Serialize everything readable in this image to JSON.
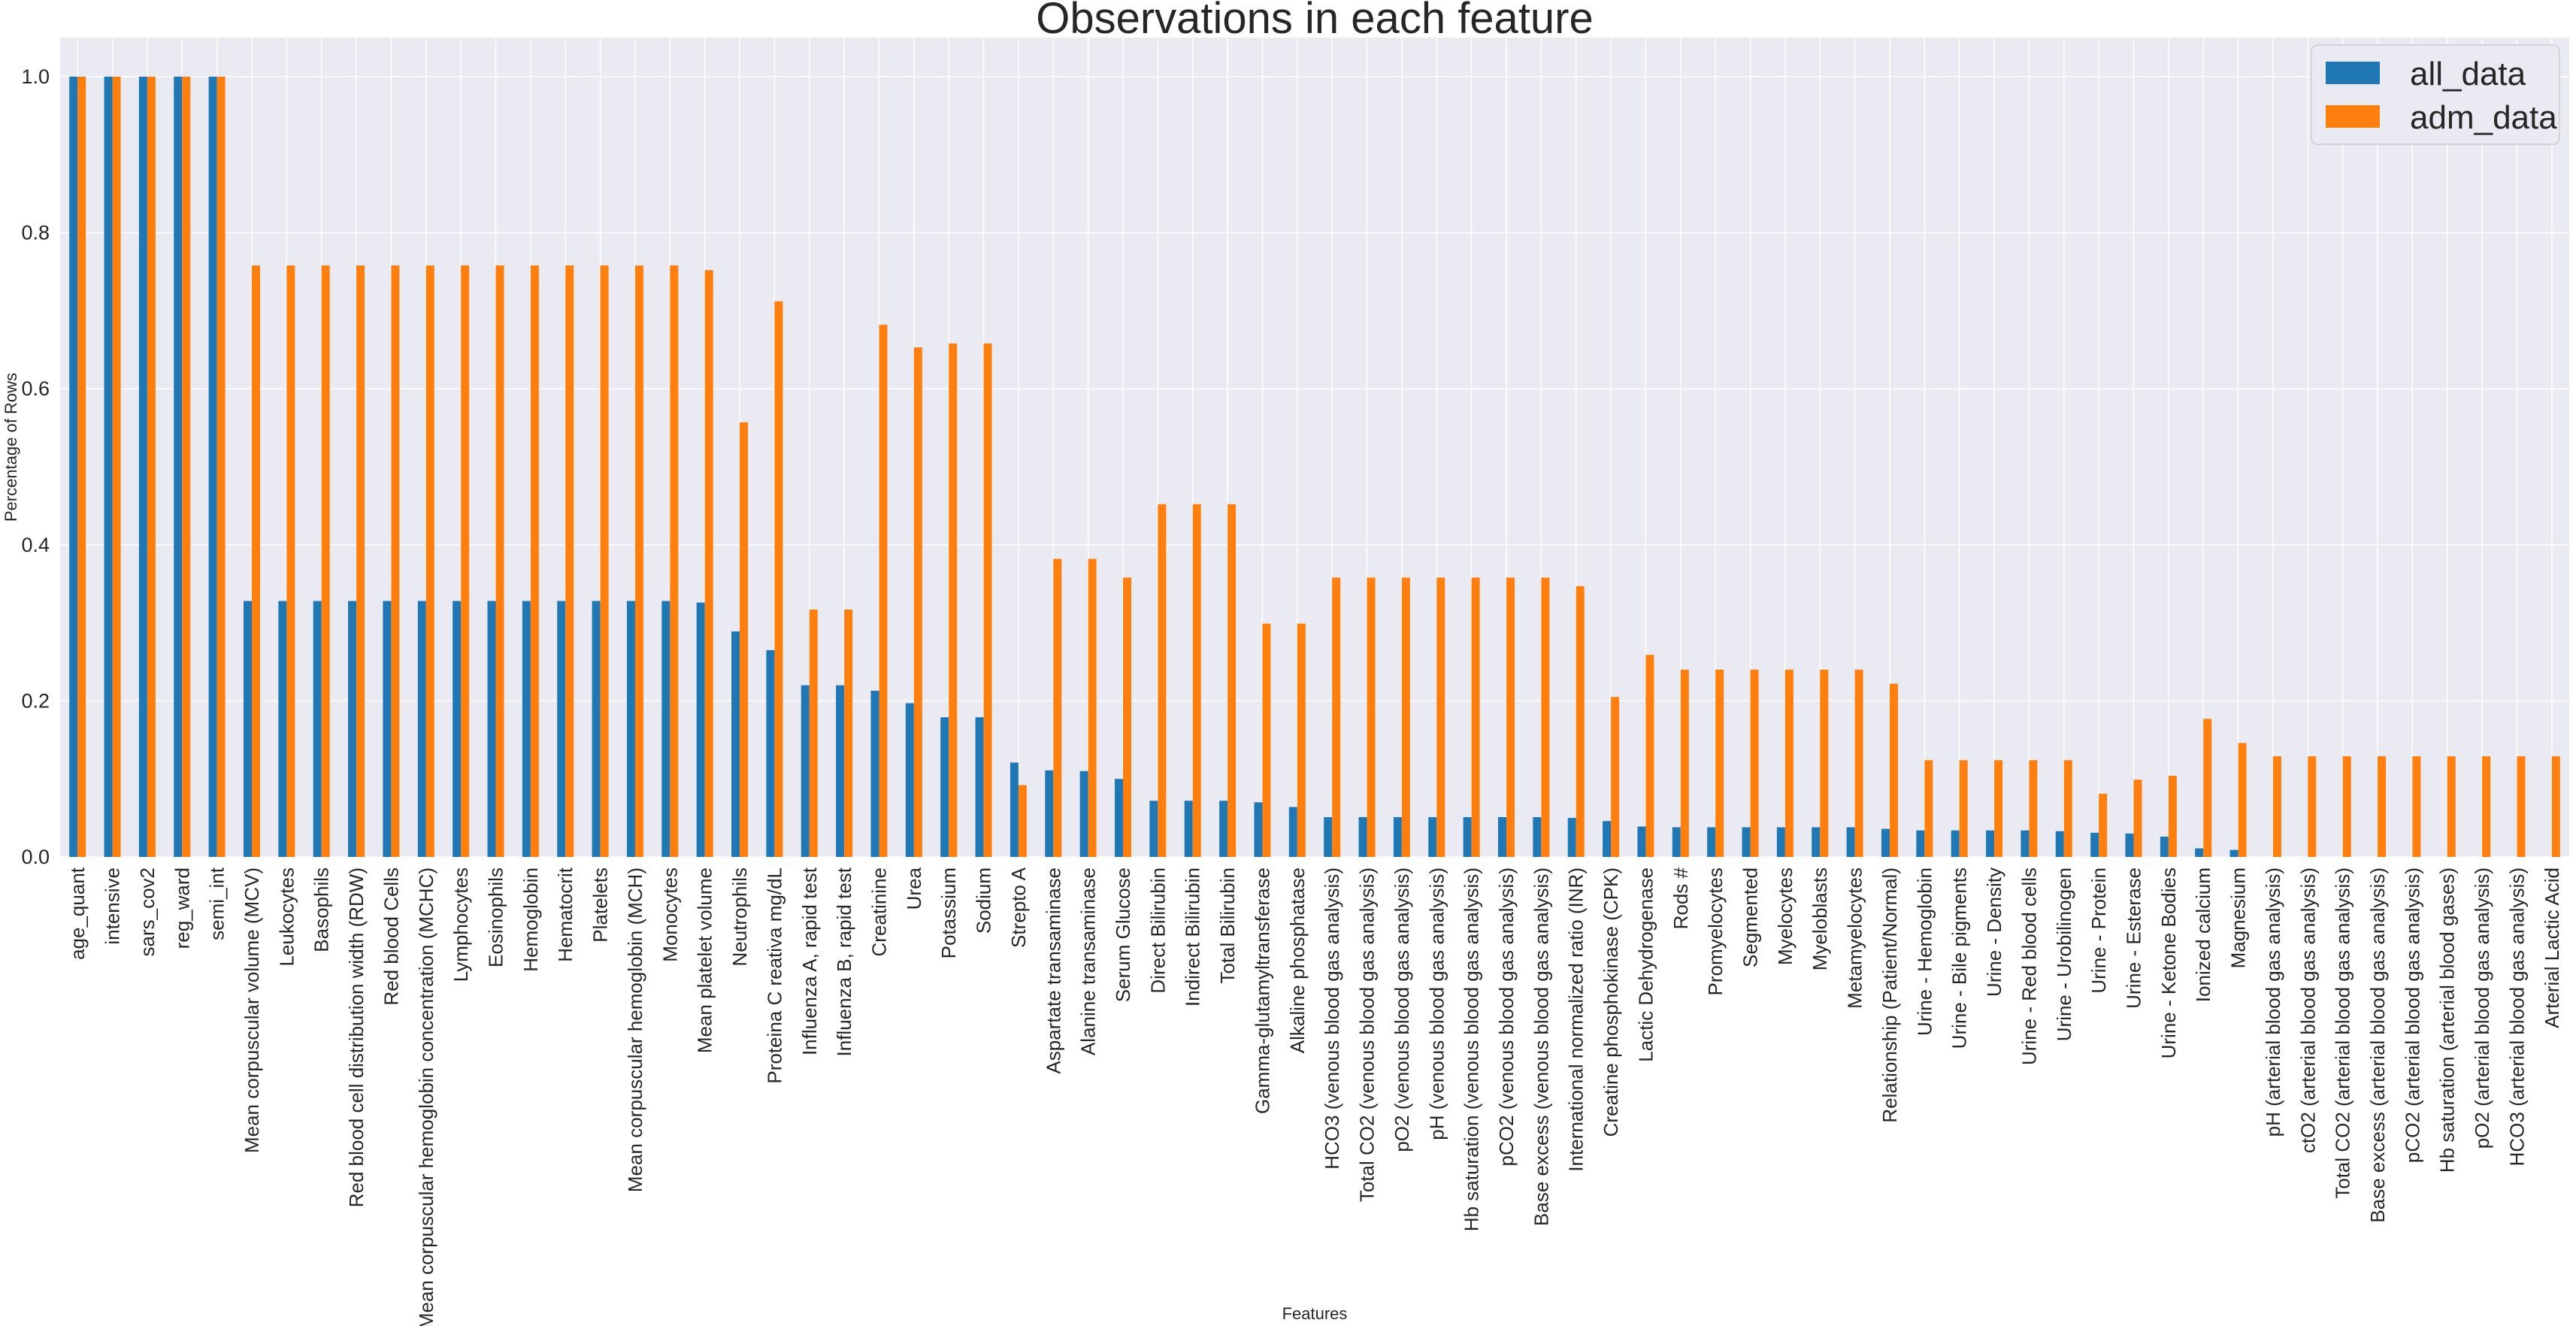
{
  "chart_data": {
    "type": "bar",
    "title": "Observations in each feature",
    "xlabel": "Features",
    "ylabel": "Percentage of Rows",
    "ylim": [
      0,
      1.05
    ],
    "yticks": [
      "0.0",
      "0.2",
      "0.4",
      "0.6",
      "0.8",
      "1.0"
    ],
    "grid": true,
    "legend_position": "top-right",
    "categories": [
      "age_quant",
      "intensive",
      "sars_cov2",
      "reg_ward",
      "semi_int",
      "Mean corpuscular volume (MCV)",
      "Leukocytes",
      "Basophils",
      "Red blood cell distribution width (RDW)",
      "Red blood Cells",
      "Mean corpuscular hemoglobin concentration (MCHC)",
      "Lymphocytes",
      "Eosinophils",
      "Hemoglobin",
      "Hematocrit",
      "Platelets",
      "Mean corpuscular hemoglobin (MCH)",
      "Monocytes",
      "Mean platelet volume",
      "Neutrophils",
      "Proteina C reativa mg/dL",
      "Influenza A, rapid test",
      "Influenza B, rapid test",
      "Creatinine",
      "Urea",
      "Potassium",
      "Sodium",
      "Strepto A",
      "Aspartate transaminase",
      "Alanine transaminase",
      "Serum Glucose",
      "Direct Bilirubin",
      "Indirect Bilirubin",
      "Total Bilirubin",
      "Gamma-glutamyltransferase",
      "Alkaline phosphatase",
      "HCO3 (venous blood gas analysis)",
      "Total CO2 (venous blood gas analysis)",
      "pO2 (venous blood gas analysis)",
      "pH (venous blood gas analysis)",
      "Hb saturation (venous blood gas analysis)",
      "pCO2 (venous blood gas analysis)",
      "Base excess (venous blood gas analysis)",
      "International normalized ratio (INR)",
      "Creatine phosphokinase (CPK)",
      "Lactic Dehydrogenase",
      "Rods #",
      "Promyelocytes",
      "Segmented",
      "Myelocytes",
      "Myeloblasts",
      "Metamyelocytes",
      "Relationship (Patient/Normal)",
      "Urine - Hemoglobin",
      "Urine - Bile pigments",
      "Urine - Density",
      "Urine - Red blood cells",
      "Urine - Urobilinogen",
      "Urine - Protein",
      "Urine - Esterase",
      "Urine - Ketone Bodies",
      "Ionized calcium",
      "Magnesium",
      "pH (arterial blood gas analysis)",
      "ctO2 (arterial blood gas analysis)",
      "Total CO2 (arterial blood gas analysis)",
      "Base excess (arterial blood gas analysis)",
      "pCO2 (arterial blood gas analysis)",
      "Hb saturation (arterial blood gases)",
      "pO2 (arterial blood gas analysis)",
      "HCO3 (arterial blood gas analysis)",
      "Arterial Lactic Acid"
    ],
    "series": [
      {
        "name": "all_data",
        "color": "#1f77b4",
        "values": [
          1.0,
          1.0,
          1.0,
          1.0,
          1.0,
          0.328,
          0.328,
          0.328,
          0.328,
          0.328,
          0.328,
          0.328,
          0.328,
          0.328,
          0.328,
          0.328,
          0.328,
          0.328,
          0.326,
          0.289,
          0.265,
          0.22,
          0.22,
          0.213,
          0.197,
          0.179,
          0.179,
          0.121,
          0.111,
          0.11,
          0.1,
          0.072,
          0.072,
          0.072,
          0.07,
          0.064,
          0.051,
          0.051,
          0.051,
          0.051,
          0.051,
          0.051,
          0.051,
          0.05,
          0.046,
          0.039,
          0.038,
          0.038,
          0.038,
          0.038,
          0.038,
          0.038,
          0.036,
          0.034,
          0.034,
          0.034,
          0.034,
          0.033,
          0.031,
          0.03,
          0.026,
          0.011,
          0.009,
          0.0,
          0.0,
          0.0,
          0.0,
          0.0,
          0.0,
          0.0,
          0.0,
          0.0
        ]
      },
      {
        "name": "adm_data",
        "color": "#ff7f0e",
        "values": [
          1.0,
          1.0,
          1.0,
          1.0,
          1.0,
          0.758,
          0.758,
          0.758,
          0.758,
          0.758,
          0.758,
          0.758,
          0.758,
          0.758,
          0.758,
          0.758,
          0.758,
          0.758,
          0.752,
          0.557,
          0.712,
          0.317,
          0.317,
          0.682,
          0.653,
          0.658,
          0.658,
          0.092,
          0.382,
          0.382,
          0.358,
          0.452,
          0.452,
          0.452,
          0.299,
          0.299,
          0.358,
          0.358,
          0.358,
          0.358,
          0.358,
          0.358,
          0.358,
          0.347,
          0.205,
          0.259,
          0.24,
          0.24,
          0.24,
          0.24,
          0.24,
          0.24,
          0.222,
          0.124,
          0.124,
          0.124,
          0.124,
          0.124,
          0.081,
          0.099,
          0.104,
          0.177,
          0.146,
          0.129,
          0.129,
          0.129,
          0.129,
          0.129,
          0.129,
          0.129,
          0.129,
          0.129
        ]
      }
    ]
  }
}
